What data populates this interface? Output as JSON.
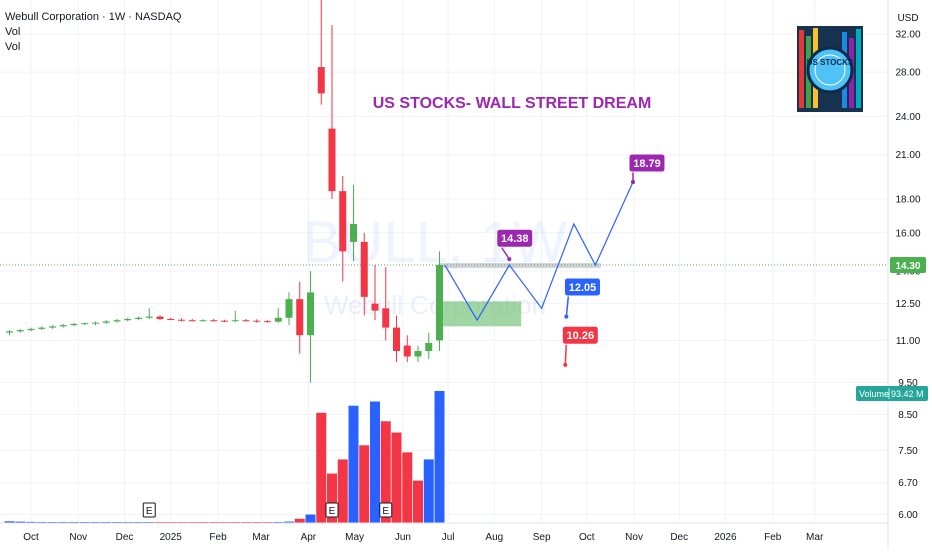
{
  "header": {
    "title": "Webull Corporation · 1W · NASDAQ",
    "indicator_1": "Vol",
    "indicator_2": "Vol"
  },
  "watermark": {
    "symbol": "BULL, 1W",
    "company": "Webull Corporation"
  },
  "annotation_title": "US STOCKS- WALL STREET DREAM",
  "logo": {
    "text": "US STOCKS"
  },
  "currency": "USD",
  "price_tag": "14.30",
  "volume_tag": {
    "label": "Volume",
    "value": "93.42 M"
  },
  "earnings_marker": "E",
  "colors": {
    "up": "#4caf50",
    "down": "#f23645",
    "vol_up": "#2962ff",
    "vol_down": "#f23645",
    "projection": "#2962ff",
    "purple_label": "#9c27b0",
    "blue_label": "#2962ff",
    "red_label": "#f23645",
    "zone": "#81c784",
    "annotation": "#9c27b0",
    "price_tag_bg": "#4caf50"
  },
  "chart_data": {
    "type": "candlestick",
    "y_scale": "log",
    "ylim": [
      5.3,
      36
    ],
    "y_ticks": [
      "32.00",
      "28.00",
      "24.00",
      "21.00",
      "18.00",
      "16.00",
      "14.00",
      "12.50",
      "11.00",
      "9.50",
      "8.50",
      "7.50",
      "6.70",
      "6.00"
    ],
    "x_ticks": [
      "Oct",
      "Nov",
      "Dec",
      "2025",
      "Feb",
      "Mar",
      "Apr",
      "May",
      "Jun",
      "Jul",
      "Aug",
      "Sep",
      "Oct",
      "Nov",
      "Dec",
      "2026",
      "Feb",
      "Mar"
    ],
    "x_tick_weeks": [
      0,
      4.4,
      8.7,
      13,
      17.4,
      21.4,
      25.8,
      30.1,
      34.6,
      38.8,
      43.1,
      47.5,
      51.7,
      56.1,
      60.3,
      64.6,
      69,
      72.9
    ],
    "candles": [
      {
        "w": -2,
        "o": 11.3,
        "h": 11.4,
        "l": 11.2,
        "c": 11.35
      },
      {
        "w": -1,
        "o": 11.35,
        "h": 11.45,
        "l": 11.3,
        "c": 11.4
      },
      {
        "w": 0,
        "o": 11.4,
        "h": 11.5,
        "l": 11.35,
        "c": 11.45
      },
      {
        "w": 1,
        "o": 11.45,
        "h": 11.55,
        "l": 11.4,
        "c": 11.5
      },
      {
        "w": 2,
        "o": 11.5,
        "h": 11.6,
        "l": 11.45,
        "c": 11.55
      },
      {
        "w": 3,
        "o": 11.55,
        "h": 11.65,
        "l": 11.5,
        "c": 11.6
      },
      {
        "w": 4,
        "o": 11.6,
        "h": 11.7,
        "l": 11.55,
        "c": 11.65
      },
      {
        "w": 5,
        "o": 11.65,
        "h": 11.7,
        "l": 11.6,
        "c": 11.68
      },
      {
        "w": 6,
        "o": 11.68,
        "h": 11.75,
        "l": 11.6,
        "c": 11.7
      },
      {
        "w": 7,
        "o": 11.7,
        "h": 11.8,
        "l": 11.65,
        "c": 11.75
      },
      {
        "w": 8,
        "o": 11.75,
        "h": 11.85,
        "l": 11.7,
        "c": 11.8
      },
      {
        "w": 9,
        "o": 11.8,
        "h": 11.9,
        "l": 11.75,
        "c": 11.85
      },
      {
        "w": 10,
        "o": 11.85,
        "h": 11.95,
        "l": 11.8,
        "c": 11.9
      },
      {
        "w": 11,
        "o": 11.9,
        "h": 12.3,
        "l": 11.85,
        "c": 11.95
      },
      {
        "w": 12,
        "o": 11.95,
        "h": 12.0,
        "l": 11.8,
        "c": 11.85
      },
      {
        "w": 13,
        "o": 11.85,
        "h": 11.9,
        "l": 11.8,
        "c": 11.82
      },
      {
        "w": 14,
        "o": 11.82,
        "h": 11.88,
        "l": 11.75,
        "c": 11.8
      },
      {
        "w": 15,
        "o": 11.8,
        "h": 11.85,
        "l": 11.75,
        "c": 11.78
      },
      {
        "w": 16,
        "o": 11.78,
        "h": 11.84,
        "l": 11.74,
        "c": 11.8
      },
      {
        "w": 17,
        "o": 11.8,
        "h": 11.86,
        "l": 11.74,
        "c": 11.78
      },
      {
        "w": 18,
        "o": 11.78,
        "h": 11.82,
        "l": 11.72,
        "c": 11.76
      },
      {
        "w": 19,
        "o": 11.76,
        "h": 12.2,
        "l": 11.72,
        "c": 11.8
      },
      {
        "w": 20,
        "o": 11.8,
        "h": 11.85,
        "l": 11.74,
        "c": 11.78
      },
      {
        "w": 21,
        "o": 11.78,
        "h": 11.84,
        "l": 11.7,
        "c": 11.76
      },
      {
        "w": 22,
        "o": 11.76,
        "h": 11.8,
        "l": 11.7,
        "c": 11.74
      },
      {
        "w": 23,
        "o": 11.74,
        "h": 12.3,
        "l": 11.7,
        "c": 11.9
      },
      {
        "w": 24,
        "o": 11.9,
        "h": 13.0,
        "l": 11.6,
        "c": 12.7
      },
      {
        "w": 25,
        "o": 12.7,
        "h": 13.5,
        "l": 10.5,
        "c": 11.2
      },
      {
        "w": 26,
        "o": 11.2,
        "h": 14.0,
        "l": 9.5,
        "c": 13.0
      },
      {
        "w": 27,
        "o": 28.5,
        "h": 36.0,
        "l": 25.0,
        "c": 26.0
      },
      {
        "w": 28,
        "o": 23.0,
        "h": 33.0,
        "l": 18.0,
        "c": 18.5
      },
      {
        "w": 29,
        "o": 18.5,
        "h": 19.5,
        "l": 13.5,
        "c": 15.0
      },
      {
        "w": 30,
        "o": 15.5,
        "h": 18.9,
        "l": 14.5,
        "c": 16.5
      },
      {
        "w": 31,
        "o": 15.5,
        "h": 16.0,
        "l": 12.0,
        "c": 12.8
      },
      {
        "w": 32,
        "o": 12.5,
        "h": 14.3,
        "l": 11.8,
        "c": 12.2
      },
      {
        "w": 33,
        "o": 12.3,
        "h": 14.2,
        "l": 11.0,
        "c": 11.5
      },
      {
        "w": 34,
        "o": 11.5,
        "h": 12.0,
        "l": 10.2,
        "c": 10.6
      },
      {
        "w": 35,
        "o": 10.8,
        "h": 11.2,
        "l": 10.2,
        "c": 10.4
      },
      {
        "w": 36,
        "o": 10.4,
        "h": 10.8,
        "l": 10.2,
        "c": 10.6
      },
      {
        "w": 37,
        "o": 10.6,
        "h": 11.3,
        "l": 10.3,
        "c": 10.9
      },
      {
        "w": 38,
        "o": 11.0,
        "h": 15.0,
        "l": 10.6,
        "c": 14.3
      }
    ],
    "volume": [
      {
        "w": -2,
        "v": 1.2,
        "up": true
      },
      {
        "w": -1,
        "v": 1.0,
        "up": true
      },
      {
        "w": 0,
        "v": 0.8,
        "up": true
      },
      {
        "w": 1,
        "v": 0.6,
        "up": true
      },
      {
        "w": 2,
        "v": 0.5,
        "up": true
      },
      {
        "w": 3,
        "v": 0.5,
        "up": true
      },
      {
        "w": 4,
        "v": 0.4,
        "up": true
      },
      {
        "w": 5,
        "v": 0.4,
        "up": true
      },
      {
        "w": 6,
        "v": 0.4,
        "up": true
      },
      {
        "w": 7,
        "v": 0.4,
        "up": true
      },
      {
        "w": 8,
        "v": 0.4,
        "up": true
      },
      {
        "w": 9,
        "v": 0.4,
        "up": true
      },
      {
        "w": 10,
        "v": 0.4,
        "up": true
      },
      {
        "w": 11,
        "v": 0.5,
        "up": true
      },
      {
        "w": 12,
        "v": 0.4,
        "up": false
      },
      {
        "w": 13,
        "v": 0.4,
        "up": false
      },
      {
        "w": 14,
        "v": 0.4,
        "up": false
      },
      {
        "w": 15,
        "v": 0.4,
        "up": false
      },
      {
        "w": 16,
        "v": 0.4,
        "up": false
      },
      {
        "w": 17,
        "v": 0.4,
        "up": false
      },
      {
        "w": 18,
        "v": 0.4,
        "up": false
      },
      {
        "w": 19,
        "v": 0.4,
        "up": false
      },
      {
        "w": 20,
        "v": 0.4,
        "up": false
      },
      {
        "w": 21,
        "v": 0.4,
        "up": false
      },
      {
        "w": 22,
        "v": 0.4,
        "up": false
      },
      {
        "w": 23,
        "v": 0.5,
        "up": true
      },
      {
        "w": 24,
        "v": 1.0,
        "up": true
      },
      {
        "w": 25,
        "v": 3.0,
        "up": false
      },
      {
        "w": 26,
        "v": 6.0,
        "up": true
      },
      {
        "w": 27,
        "v": 78,
        "up": false
      },
      {
        "w": 28,
        "v": 35,
        "up": false
      },
      {
        "w": 29,
        "v": 45,
        "up": false
      },
      {
        "w": 30,
        "v": 83,
        "up": true
      },
      {
        "w": 31,
        "v": 55,
        "up": false
      },
      {
        "w": 32,
        "v": 86,
        "up": true
      },
      {
        "w": 33,
        "v": 72,
        "up": false
      },
      {
        "w": 34,
        "v": 64,
        "up": false
      },
      {
        "w": 35,
        "v": 50,
        "up": false
      },
      {
        "w": 36,
        "v": 30,
        "up": false
      },
      {
        "w": 37,
        "v": 45,
        "up": true
      },
      {
        "w": 38,
        "v": 93.42,
        "up": true
      }
    ],
    "earnings_weeks": [
      11,
      28,
      33
    ],
    "projection_path": [
      {
        "w": 38.5,
        "p": 14.3
      },
      {
        "w": 41.5,
        "p": 11.8
      },
      {
        "w": 44.5,
        "p": 14.3
      },
      {
        "w": 47.5,
        "p": 12.3
      },
      {
        "w": 50.5,
        "p": 16.5
      },
      {
        "w": 52.5,
        "p": 14.3
      },
      {
        "w": 56,
        "p": 19.1
      }
    ],
    "zone": {
      "w0": 38,
      "w1": 45.6,
      "p0": 11.55,
      "p1": 12.6
    },
    "resistance_band": {
      "w0": 38,
      "w1": 53,
      "p0": 14.15,
      "p1": 14.4
    },
    "current_price": 14.3,
    "targets": [
      {
        "label": "18.79",
        "w": 57.3,
        "p": 20.4,
        "color": "purple",
        "pointer_w": 56,
        "pointer_p": 19.1
      },
      {
        "label": "14.38",
        "w": 45.0,
        "p": 15.7,
        "color": "purple",
        "pointer_w": 44.5,
        "pointer_p": 14.6
      },
      {
        "label": "12.05",
        "w": 51.3,
        "p": 13.25,
        "color": "blue",
        "pointer_w": 49.8,
        "pointer_p": 11.95
      },
      {
        "label": "10.26",
        "w": 51.1,
        "p": 11.2,
        "color": "red",
        "pointer_w": 49.7,
        "pointer_p": 10.1
      }
    ]
  }
}
